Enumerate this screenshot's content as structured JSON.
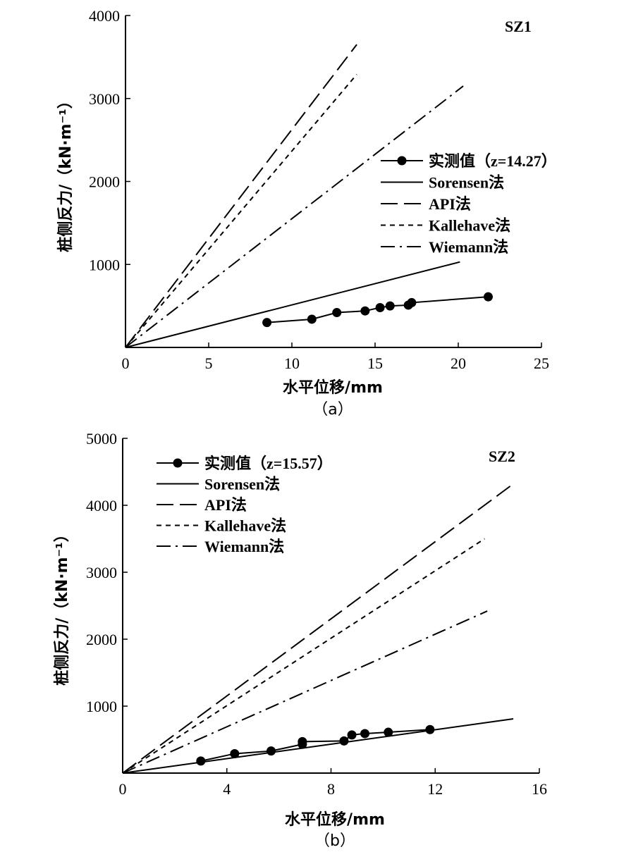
{
  "chart_data": [
    {
      "type": "line",
      "panel_label": "SZ1",
      "caption": "（a）",
      "xlabel": "水平位移/mm",
      "ylabel": "桩侧反力/（kN·m⁻¹）",
      "xlim": [
        0,
        25
      ],
      "ylim": [
        0,
        4000
      ],
      "xticks": [
        0,
        5,
        10,
        15,
        20,
        25
      ],
      "yticks": [
        1000,
        2000,
        3000,
        4000
      ],
      "legend_position": "middle-right",
      "series": [
        {
          "name": "实测值（z=14.27）",
          "style": "marker-line",
          "x": [
            8.5,
            11.2,
            12.7,
            14.4,
            15.3,
            15.9,
            17.0,
            17.2,
            21.8
          ],
          "y": [
            300,
            340,
            420,
            440,
            480,
            500,
            510,
            540,
            610
          ]
        },
        {
          "name": "Sorensen法",
          "style": "solid",
          "x": [
            0,
            20.1
          ],
          "y": [
            0,
            1030
          ]
        },
        {
          "name": "API法",
          "style": "longdash",
          "x": [
            0,
            13.9
          ],
          "y": [
            0,
            3650
          ]
        },
        {
          "name": "Kallehave法",
          "style": "shortdash",
          "x": [
            0,
            13.9
          ],
          "y": [
            0,
            3290
          ]
        },
        {
          "name": "Wiemann法",
          "style": "dashdot",
          "x": [
            0,
            20.3
          ],
          "y": [
            0,
            3150
          ]
        }
      ]
    },
    {
      "type": "line",
      "panel_label": "SZ2",
      "caption": "（b）",
      "xlabel": "水平位移/mm",
      "ylabel": "桩侧反力/（kN·m⁻¹）",
      "xlim": [
        0,
        16
      ],
      "ylim": [
        0,
        5000
      ],
      "xticks": [
        0,
        4,
        8,
        12,
        16
      ],
      "yticks": [
        1000,
        2000,
        3000,
        4000,
        5000
      ],
      "legend_position": "top-left",
      "series": [
        {
          "name": "实测值（z=15.57）",
          "style": "marker-line",
          "x": [
            3.0,
            4.3,
            5.7,
            6.9,
            6.9,
            8.5,
            8.8,
            9.3,
            10.2,
            11.8
          ],
          "y": [
            180,
            290,
            330,
            430,
            470,
            480,
            570,
            590,
            610,
            650
          ]
        },
        {
          "name": "Sorensen法",
          "style": "solid",
          "x": [
            0,
            15.0
          ],
          "y": [
            0,
            810
          ]
        },
        {
          "name": "API法",
          "style": "longdash",
          "x": [
            0,
            15.0
          ],
          "y": [
            0,
            4320
          ]
        },
        {
          "name": "Kallehave法",
          "style": "shortdash",
          "x": [
            0,
            13.9
          ],
          "y": [
            0,
            3500
          ]
        },
        {
          "name": "Wiemann法",
          "style": "dashdot",
          "x": [
            0,
            14.0
          ],
          "y": [
            0,
            2420
          ]
        }
      ]
    }
  ]
}
